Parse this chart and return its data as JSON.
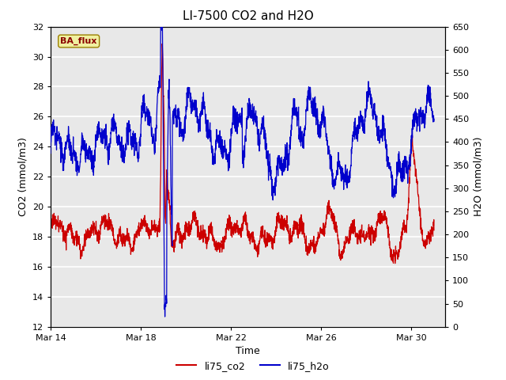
{
  "title": "LI-7500 CO2 and H2O",
  "xlabel": "Time",
  "ylabel_left": "CO2 (mmol/m3)",
  "ylabel_right": "H2O (mmol/m3)",
  "ylim_left": [
    12,
    32
  ],
  "ylim_right": [
    0,
    650
  ],
  "yticks_left": [
    12,
    14,
    16,
    18,
    20,
    22,
    24,
    26,
    28,
    30,
    32
  ],
  "yticks_right": [
    0,
    50,
    100,
    150,
    200,
    250,
    300,
    350,
    400,
    450,
    500,
    550,
    600,
    650
  ],
  "xtick_positions": [
    0,
    4,
    8,
    12,
    16
  ],
  "xtick_labels": [
    "Mar 14",
    "Mar 18",
    "Mar 22",
    "Mar 26",
    "Mar 30"
  ],
  "xlim": [
    0,
    17.5
  ],
  "legend_labels": [
    "li75_co2",
    "li75_h2o"
  ],
  "co2_color": "#cc0000",
  "h2o_color": "#0000cc",
  "annotation_text": "BA_flux",
  "plot_bg_color": "#e8e8e8",
  "fig_bg_color": "#ffffff",
  "grid_color": "#ffffff",
  "title_fontsize": 11,
  "axis_label_fontsize": 9,
  "tick_fontsize": 8,
  "legend_fontsize": 9
}
